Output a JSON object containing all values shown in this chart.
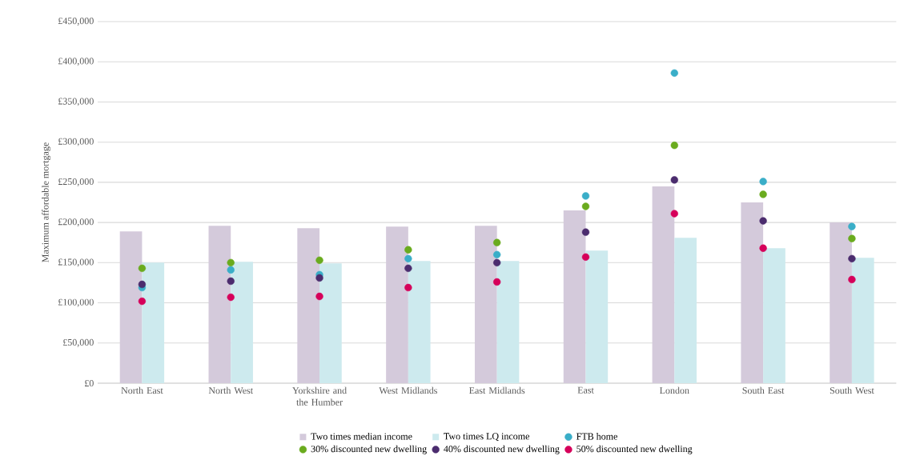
{
  "chart_data": {
    "type": "bar",
    "ylabel": "Maximum affordable mortgage",
    "categories": [
      "North East",
      "North West",
      "Yorkshire and the Humber",
      "West Midlands",
      "East Midlands",
      "East",
      "London",
      "South East",
      "South West"
    ],
    "series": [
      {
        "name": "Two times median income",
        "color": "#d4cadb",
        "values": [
          189000,
          196000,
          193000,
          195000,
          196000,
          215000,
          245000,
          225000,
          200000
        ]
      },
      {
        "name": "Two times LQ income",
        "color": "#cdeaee",
        "values": [
          150000,
          151000,
          149000,
          152000,
          152000,
          165000,
          181000,
          168000,
          156000
        ]
      },
      {
        "name": "FTB home",
        "type": "scatter",
        "color": "#3aaec8",
        "x": [
          "North East",
          "North West",
          "Yorkshire and the Humber",
          "West Midlands",
          "East Midlands",
          "East",
          "London",
          "South East",
          "South West"
        ],
        "values": [
          119000,
          141000,
          135000,
          155000,
          160000,
          233000,
          386000,
          251000,
          195000
        ]
      },
      {
        "name": "30% discounted new dwelling",
        "type": "scatter",
        "color": "#6aab1e",
        "x": [
          "North East",
          "North West",
          "Yorkshire and the Humber",
          "West Midlands",
          "East Midlands",
          "East",
          "London",
          "South East",
          "South West"
        ],
        "values": [
          143000,
          150000,
          153000,
          166000,
          175000,
          220000,
          296000,
          235000,
          180000
        ]
      },
      {
        "name": "40% discounted new dwelling",
        "type": "scatter",
        "color": "#4b2c6e",
        "x": [
          "North East",
          "North West",
          "Yorkshire and the Humber",
          "West Midlands",
          "East Midlands",
          "East",
          "London",
          "South East",
          "South West"
        ],
        "values": [
          123000,
          127000,
          131000,
          143000,
          150000,
          188000,
          253000,
          202000,
          155000
        ]
      },
      {
        "name": "50% discounted new dwelling",
        "type": "scatter",
        "color": "#d6005a",
        "x": [
          "North East",
          "North West",
          "Yorkshire and the Humber",
          "West Midlands",
          "East Midlands",
          "East",
          "London",
          "South East",
          "South West"
        ],
        "values": [
          102000,
          107000,
          108000,
          119000,
          126000,
          157000,
          211000,
          168000,
          129000
        ]
      }
    ],
    "ylim": [
      0,
      450000
    ],
    "yticks": [
      {
        "value": 0,
        "label": "£0"
      },
      {
        "value": 50000,
        "label": "£50,000"
      },
      {
        "value": 100000,
        "label": "£100,000"
      },
      {
        "value": 150000,
        "label": "£150,000"
      },
      {
        "value": 200000,
        "label": "£200,000"
      },
      {
        "value": 250000,
        "label": "£250,000"
      },
      {
        "value": 300000,
        "label": "£300,000"
      },
      {
        "value": 350000,
        "label": "£350,000"
      },
      {
        "value": 400000,
        "label": "£400,000"
      },
      {
        "value": 450000,
        "label": "£450,000"
      }
    ],
    "grid": "y",
    "legend": "bottom",
    "marker": "circle"
  }
}
